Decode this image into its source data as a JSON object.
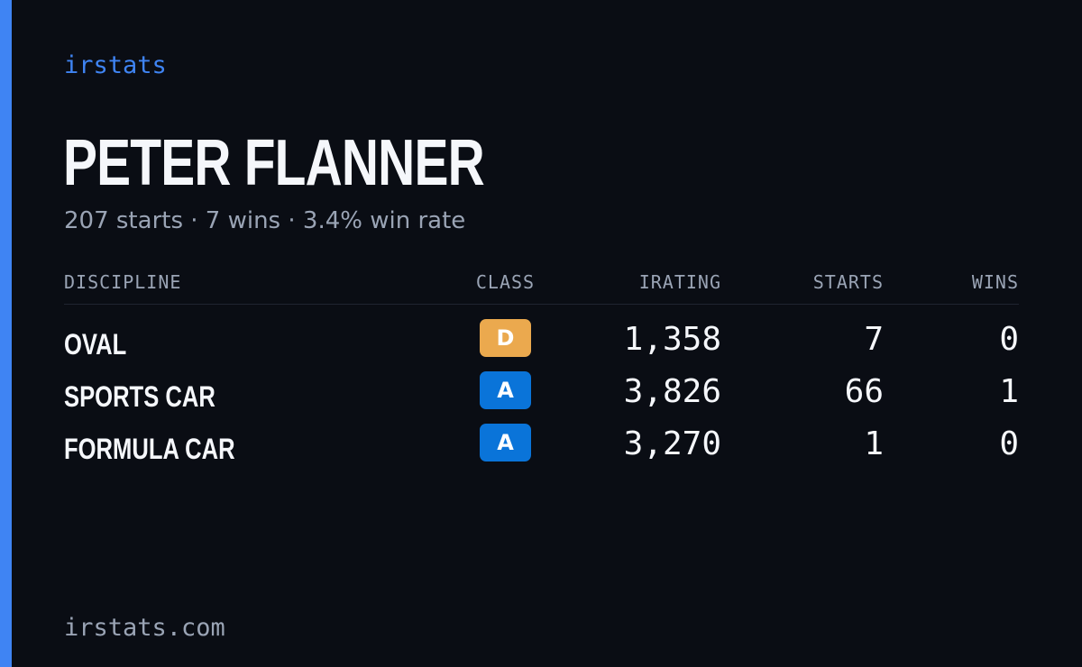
{
  "brand": "irstats",
  "player": {
    "name": "PETER FLANNER",
    "summary": "207 starts · 7 wins · 3.4% win rate"
  },
  "table": {
    "headers": {
      "discipline": "DISCIPLINE",
      "class": "CLASS",
      "irating": "IRATING",
      "starts": "STARTS",
      "wins": "WINS"
    },
    "rows": [
      {
        "discipline": "OVAL",
        "class": "D",
        "irating": "1,358",
        "starts": "7",
        "wins": "0"
      },
      {
        "discipline": "SPORTS CAR",
        "class": "A",
        "irating": "3,826",
        "starts": "66",
        "wins": "1"
      },
      {
        "discipline": "FORMULA CAR",
        "class": "A",
        "irating": "3,270",
        "starts": "1",
        "wins": "0"
      }
    ]
  },
  "footer": {
    "site": "irstats.com"
  },
  "colors": {
    "background": "#0a0d14",
    "accent": "#3f84f3",
    "class_d": "#eba94e",
    "class_a": "#0a74d9",
    "muted_text": "#9aa4b5"
  }
}
